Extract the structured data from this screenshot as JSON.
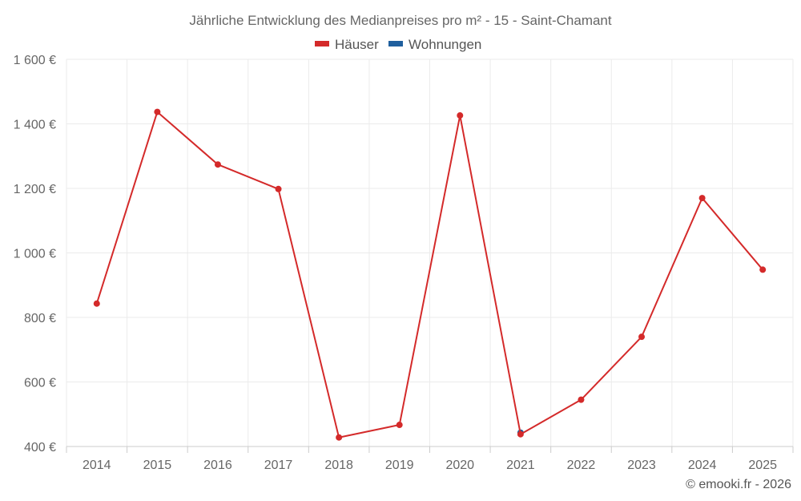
{
  "chart_data": {
    "type": "line",
    "title": "Jährliche Entwicklung des Medianpreises pro m² - 15 - Saint-Chamant",
    "categories": [
      "2014",
      "2015",
      "2016",
      "2017",
      "2018",
      "2019",
      "2020",
      "2021",
      "2022",
      "2023",
      "2024",
      "2025"
    ],
    "ylim": [
      400,
      1600
    ],
    "yticks": [
      400,
      600,
      800,
      1000,
      1200,
      1400,
      1600
    ],
    "ytick_labels": [
      "400 €",
      "600 €",
      "800 €",
      "1 000 €",
      "1 200 €",
      "1 400 €",
      "1 600 €"
    ],
    "grid": true,
    "legend_position": "top-center",
    "series": [
      {
        "name": "Häuser",
        "color": "#d42a2a",
        "values": [
          843,
          1437,
          1274,
          1198,
          428,
          467,
          1426,
          438,
          545,
          740,
          1170,
          948
        ]
      },
      {
        "name": "Wohnungen",
        "color": "#1f5f9e",
        "values": [
          null,
          null,
          null,
          null,
          null,
          null,
          null,
          443,
          null,
          null,
          null,
          null
        ]
      }
    ],
    "credit": "© emooki.fr - 2026"
  }
}
